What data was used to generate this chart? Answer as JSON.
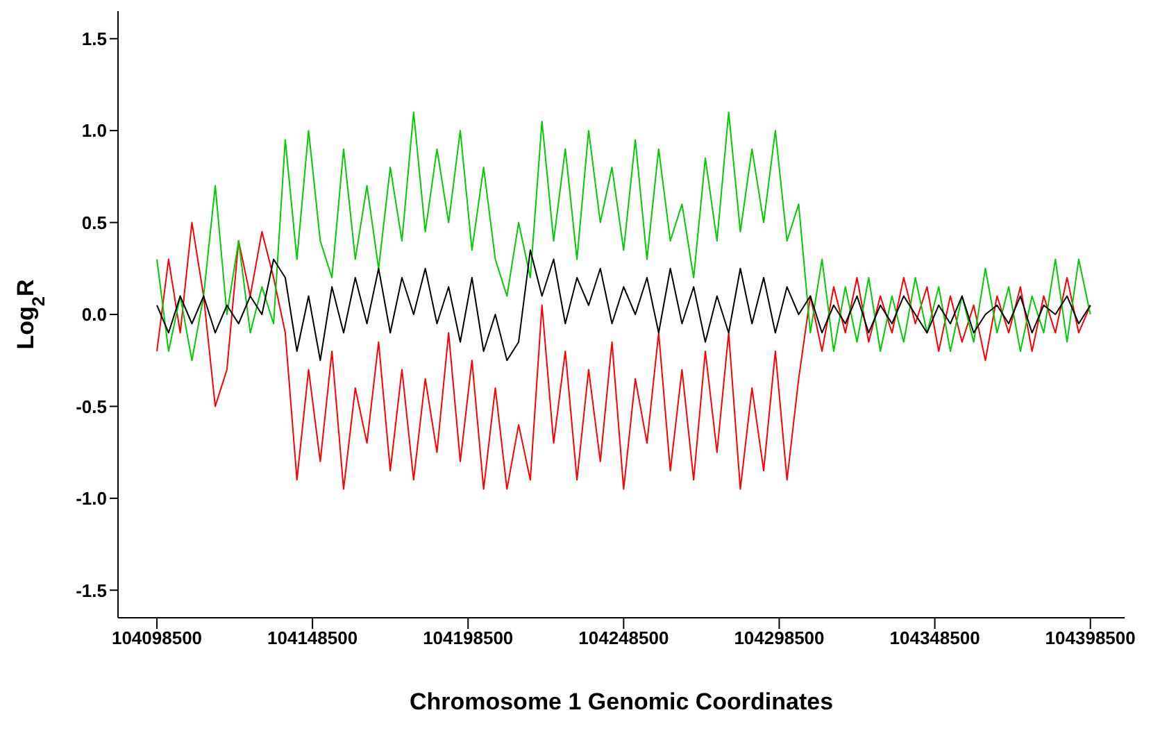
{
  "chart_data": {
    "type": "line",
    "xlabel": "Chromosome 1 Genomic Coordinates",
    "ylabel": "Log$_{2}$R",
    "x": [
      104098500,
      104102250,
      104106000,
      104109750,
      104113500,
      104117250,
      104121000,
      104124750,
      104128500,
      104132250,
      104136000,
      104139750,
      104143500,
      104147250,
      104151000,
      104154750,
      104158500,
      104162250,
      104166000,
      104169750,
      104173500,
      104177250,
      104181000,
      104184750,
      104188500,
      104192250,
      104196000,
      104199750,
      104203500,
      104207250,
      104211000,
      104214750,
      104218500,
      104222250,
      104226000,
      104229750,
      104233500,
      104237250,
      104241000,
      104244750,
      104248500,
      104252250,
      104256000,
      104259750,
      104263500,
      104267250,
      104271000,
      104274750,
      104278500,
      104282250,
      104286000,
      104289750,
      104293500,
      104297250,
      104301000,
      104304750,
      104308500,
      104312250,
      104316000,
      104319750,
      104323500,
      104327250,
      104331000,
      104334750,
      104338500,
      104342250,
      104346000,
      104349750,
      104353500,
      104357250,
      104361000,
      104364750,
      104368500,
      104372250,
      104376000,
      104379750,
      104383500,
      104387250,
      104391000,
      104394750,
      104398500
    ],
    "series": [
      {
        "color": "#ff0000",
        "values": [
          -0.2,
          0.3,
          -0.1,
          0.5,
          0.1,
          -0.5,
          -0.3,
          0.4,
          0.1,
          0.45,
          0.2,
          -0.1,
          -0.9,
          -0.3,
          -0.8,
          -0.2,
          -0.95,
          -0.4,
          -0.7,
          -0.15,
          -0.85,
          -0.3,
          -0.9,
          -0.35,
          -0.75,
          -0.1,
          -0.8,
          -0.25,
          -0.95,
          -0.4,
          -0.95,
          -0.6,
          -0.9,
          0.05,
          -0.7,
          -0.2,
          -0.9,
          -0.3,
          -0.8,
          -0.15,
          -0.95,
          -0.35,
          -0.7,
          -0.1,
          -0.85,
          -0.3,
          -0.9,
          -0.2,
          -0.75,
          -0.1,
          -0.95,
          -0.4,
          -0.85,
          -0.2,
          -0.9,
          -0.35,
          0.1,
          -0.2,
          0.15,
          -0.1,
          0.2,
          -0.15,
          0.1,
          -0.1,
          0.2,
          -0.05,
          0.15,
          -0.2,
          0.1,
          -0.15,
          0.05,
          -0.25,
          0.1,
          -0.1,
          0.15,
          -0.2,
          0.1,
          -0.1,
          0.2,
          -0.1,
          0.05
        ]
      },
      {
        "color": "#00cc00",
        "values": [
          0.3,
          -0.2,
          0.1,
          -0.25,
          0.1,
          0.7,
          0.0,
          0.4,
          -0.1,
          0.15,
          -0.05,
          0.95,
          0.3,
          1.0,
          0.4,
          0.2,
          0.9,
          0.3,
          0.7,
          0.25,
          0.8,
          0.4,
          1.1,
          0.45,
          0.9,
          0.5,
          1.0,
          0.35,
          0.8,
          0.3,
          0.1,
          0.5,
          0.2,
          1.05,
          0.4,
          0.9,
          0.3,
          1.0,
          0.5,
          0.8,
          0.35,
          0.95,
          0.3,
          0.9,
          0.4,
          0.6,
          0.2,
          0.85,
          0.4,
          1.1,
          0.45,
          0.9,
          0.5,
          1.0,
          0.4,
          0.6,
          -0.1,
          0.3,
          -0.2,
          0.15,
          -0.15,
          0.2,
          -0.2,
          0.1,
          -0.15,
          0.2,
          -0.1,
          0.15,
          -0.2,
          0.1,
          -0.15,
          0.25,
          -0.1,
          0.15,
          -0.2,
          0.1,
          -0.1,
          0.3,
          -0.15,
          0.3,
          0.0
        ]
      },
      {
        "color": "#000000",
        "values": [
          0.05,
          -0.1,
          0.1,
          -0.05,
          0.1,
          -0.1,
          0.05,
          -0.05,
          0.1,
          0.0,
          0.3,
          0.2,
          -0.2,
          0.1,
          -0.25,
          0.15,
          -0.1,
          0.2,
          -0.05,
          0.25,
          -0.1,
          0.2,
          0.0,
          0.25,
          -0.05,
          0.15,
          -0.15,
          0.2,
          -0.2,
          0.0,
          -0.25,
          -0.15,
          0.35,
          0.1,
          0.3,
          -0.05,
          0.2,
          0.05,
          0.25,
          -0.05,
          0.15,
          0.0,
          0.2,
          -0.1,
          0.25,
          -0.05,
          0.15,
          -0.15,
          0.1,
          -0.1,
          0.25,
          -0.05,
          0.2,
          -0.1,
          0.15,
          0.0,
          0.1,
          -0.1,
          0.05,
          -0.05,
          0.1,
          -0.1,
          0.05,
          -0.05,
          0.1,
          0.0,
          -0.1,
          0.05,
          -0.05,
          0.1,
          -0.1,
          0.0,
          0.05,
          -0.05,
          0.1,
          -0.1,
          0.05,
          0.0,
          0.1,
          -0.05,
          0.05
        ]
      }
    ],
    "xlim": [
      104086000,
      104409500
    ],
    "xticks": [
      104098500,
      104148500,
      104198500,
      104248500,
      104298500,
      104348500,
      104398500
    ],
    "ylim": [
      -1.65,
      1.65
    ],
    "yticks": [
      -1.5,
      {
        "value": -1,
        "label": "-1.0"
      },
      -0.5,
      {
        "value": 0,
        "label": "0.0"
      },
      0.5,
      {
        "value": 1,
        "label": "1.0"
      },
      1.5
    ],
    "grid": false,
    "legend": false,
    "marker": "none",
    "line_style": "solid"
  }
}
